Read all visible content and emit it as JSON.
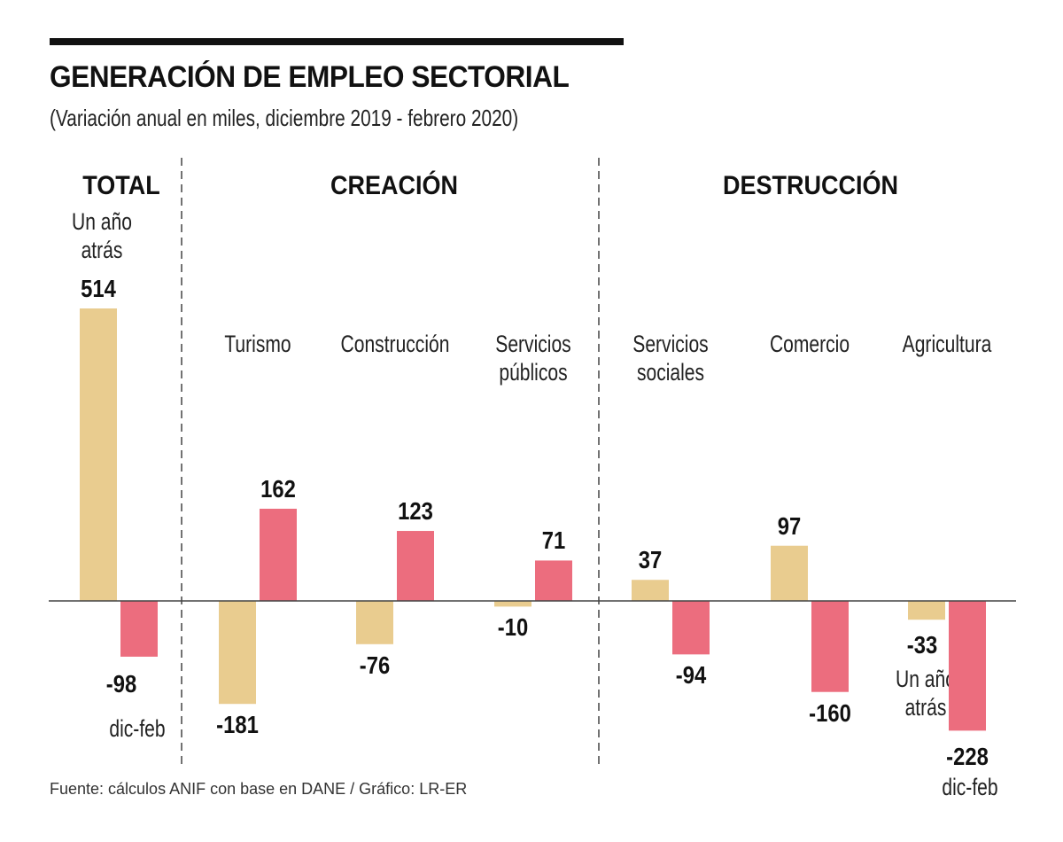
{
  "header": {
    "title": "GENERACIÓN DE EMPLEO SECTORIAL",
    "subtitle": "(Variación anual en miles, diciembre 2019 - febrero 2020)"
  },
  "sections": {
    "total": "TOTAL",
    "creation": "CREACIÓN",
    "destruction": "DESTRUCCIÓN"
  },
  "notes": {
    "total_prev": "Un año\natrás",
    "total_cur": "dic-feb",
    "agri_prev": "Un año\natrás",
    "agri_cur": "dic-feb"
  },
  "source": "Fuente: cálculos ANIF con base en DANE / Gráfico: LR-ER",
  "colors": {
    "previous_year": "#E9CC8F",
    "dec_feb": "#EC6D7E"
  },
  "chart_data": {
    "type": "bar",
    "title": "GENERACIÓN DE EMPLEO SECTORIAL",
    "subtitle": "(Variación anual en miles, diciembre 2019 - febrero 2020)",
    "xlabel": "",
    "ylabel": "",
    "grid": false,
    "legend": "inline annotations",
    "categories": [
      "Total",
      "Turismo",
      "Construcción",
      "Servicios\npúblicos",
      "Servicios\nsociales",
      "Comercio",
      "Agricultura"
    ],
    "groups": [
      "TOTAL",
      "CREACIÓN",
      "CREACIÓN",
      "CREACIÓN",
      "DESTRUCCIÓN",
      "DESTRUCCIÓN",
      "DESTRUCCIÓN"
    ],
    "series": [
      {
        "name": "Un año atrás",
        "values": [
          514,
          -181,
          -76,
          -10,
          37,
          97,
          -33
        ]
      },
      {
        "name": "dic-feb",
        "values": [
          -98,
          162,
          123,
          71,
          -94,
          -160,
          -228
        ]
      }
    ],
    "labels": [
      [
        "514",
        "-181",
        "-76",
        "-10",
        "37",
        "97",
        "-33"
      ],
      [
        "-98",
        "162",
        "123",
        "71",
        "-94",
        "-160",
        "-228"
      ]
    ]
  }
}
